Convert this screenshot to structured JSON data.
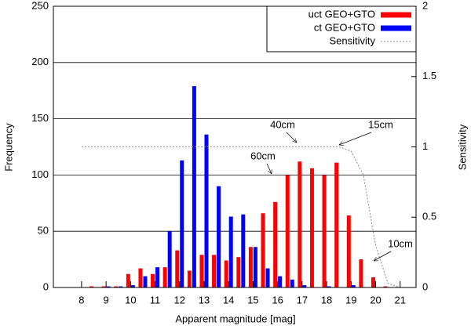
{
  "chart_data": {
    "type": "bar",
    "x": [
      8,
      8.5,
      9,
      9.5,
      10,
      10.5,
      11,
      11.5,
      12,
      12.5,
      13,
      13.5,
      14,
      14.5,
      15,
      15.5,
      16,
      16.5,
      17,
      17.5,
      18,
      18.5,
      19,
      19.5,
      20,
      20.5,
      21
    ],
    "series": [
      {
        "name": "uct GEO+GTO",
        "color": "#ff0000",
        "values": [
          0,
          1,
          1,
          1,
          12,
          17,
          12,
          18,
          33,
          15,
          29,
          29,
          24,
          27,
          36,
          66,
          76,
          100,
          112,
          106,
          100,
          111,
          64,
          25,
          9,
          1,
          0
        ]
      },
      {
        "name": "ct GEO+GTO",
        "color": "#0000ff",
        "values": [
          0,
          0,
          1,
          1,
          2,
          10,
          18,
          50,
          113,
          179,
          136,
          90,
          63,
          65,
          36,
          17,
          10,
          7,
          2,
          0,
          1,
          0,
          2,
          0,
          0,
          0,
          0
        ]
      },
      {
        "name": "Sensitivity",
        "type": "line",
        "axis": "y2",
        "color": "#888888",
        "x": [
          8,
          18.5,
          19,
          19.5,
          20,
          20.5,
          21
        ],
        "values": [
          1,
          1,
          0.97,
          0.8,
          0.3,
          0.03,
          0
        ]
      }
    ],
    "xlabel": "Apparent magnitude [mag]",
    "ylabel": "Frequency",
    "y2label": "Sensitivity",
    "xlim": [
      6.85,
      21.65
    ],
    "xticks": [
      8,
      9,
      10,
      11,
      12,
      13,
      14,
      15,
      16,
      17,
      18,
      19,
      20,
      21
    ],
    "ylim": [
      0,
      250
    ],
    "yticks": [
      0,
      50,
      100,
      150,
      200,
      250
    ],
    "y2lim": [
      0,
      2
    ],
    "y2ticks": [
      0,
      0.5,
      1,
      1.5,
      2
    ],
    "grid": true,
    "legend": "top-right",
    "annotations": [
      "40cm",
      "15cm",
      "60cm",
      "10cm"
    ]
  }
}
